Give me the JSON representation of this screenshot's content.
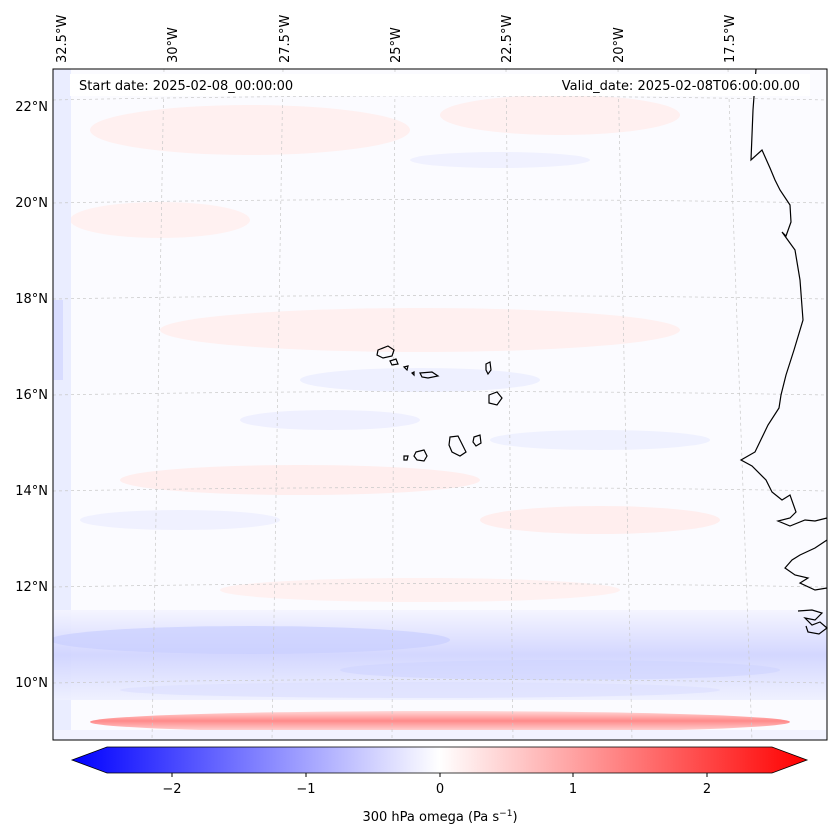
{
  "header": {
    "start_date": "Start date: 2025-02-08_00:00:00",
    "valid_date": "Valid_date: 2025-02-08T06:00:00.00"
  },
  "axes": {
    "lon_ticks": [
      "32.5°W",
      "30°W",
      "27.5°W",
      "25°W",
      "22.5°W",
      "20°W",
      "17.5°W"
    ],
    "lat_ticks": [
      "22°N",
      "20°N",
      "18°N",
      "16°N",
      "14°N",
      "12°N",
      "10°N"
    ]
  },
  "colorbar": {
    "ticks": [
      "−2",
      "−1",
      "0",
      "1",
      "2"
    ],
    "label_main": "300 hPa omega (Pa s",
    "label_sup": "−1",
    "label_end": ")",
    "colormap": "bwr",
    "range": [
      -2.7,
      2.7
    ],
    "low_color": "#0000ff",
    "mid_color": "#ffffff",
    "high_color": "#ff0000"
  },
  "map": {
    "field_description_none": "",
    "coastline_color": "#000000",
    "gridline_color": "#c8c8c8"
  }
}
